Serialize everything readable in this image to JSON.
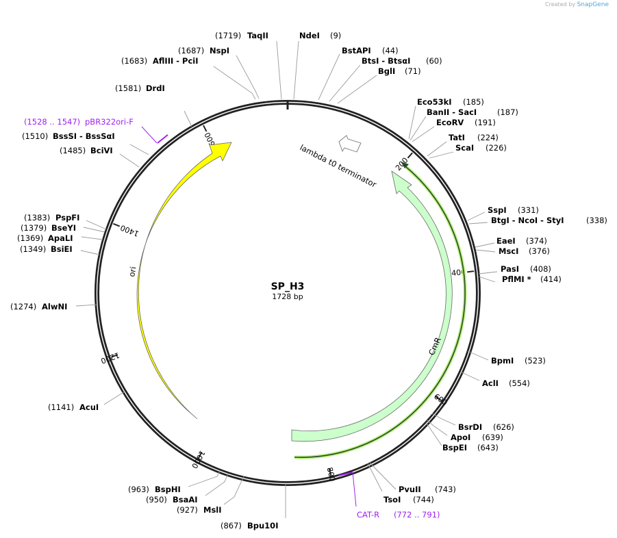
{
  "credit": {
    "prefix": "Created by",
    "brand": "SnapGene"
  },
  "plasmid": {
    "name": "SP_H3",
    "length_label": "1728 bp",
    "length": 1728
  },
  "ticks": [
    {
      "pos": 200,
      "label": "200"
    },
    {
      "pos": 400,
      "label": "400"
    },
    {
      "pos": 600,
      "label": "600"
    },
    {
      "pos": 800,
      "label": "800"
    },
    {
      "pos": 1000,
      "label": "1000"
    },
    {
      "pos": 1200,
      "label": "1200"
    },
    {
      "pos": 1400,
      "label": "1400"
    },
    {
      "pos": 1600,
      "label": "1600"
    }
  ],
  "features": [
    {
      "name": "ori",
      "color": "#ffff00",
      "start": 1000,
      "end": 1590,
      "direction": "forward"
    },
    {
      "name": "CmR",
      "color": "#ccffcc",
      "start": 240,
      "end": 820,
      "direction": "reverse"
    },
    {
      "name": "lambda t0 terminator",
      "color": "#ffffff",
      "start": 105,
      "end": 150,
      "direction": "reverse"
    }
  ],
  "primers": [
    {
      "name": "pBR322ori-F",
      "range": "(1528 .. 1547)"
    },
    {
      "name": "CAT-R",
      "range": "(772 .. 791)"
    }
  ],
  "enzymes": [
    {
      "name": "NdeI",
      "pos": "(9)"
    },
    {
      "name": "BstAPI",
      "pos": "(44)"
    },
    {
      "name": "BtsI  - BtsαI",
      "pos": "(60)"
    },
    {
      "name": "BglI",
      "pos": "(71)"
    },
    {
      "name": "Eco53kI",
      "pos": "(185)"
    },
    {
      "name": "BanII  - SacI",
      "pos": "(187)"
    },
    {
      "name": "EcoRV",
      "pos": "(191)"
    },
    {
      "name": "TatI",
      "pos": "(224)"
    },
    {
      "name": "ScaI",
      "pos": "(226)"
    },
    {
      "name": "SspI",
      "pos": "(331)"
    },
    {
      "name": "BtgI  - NcoI  - StyI",
      "pos": "(338)"
    },
    {
      "name": "EaeI",
      "pos": "(374)"
    },
    {
      "name": "MscI",
      "pos": "(376)"
    },
    {
      "name": "PasI",
      "pos": "(408)"
    },
    {
      "name": "PflMI *",
      "pos": "(414)"
    },
    {
      "name": "BpmI",
      "pos": "(523)"
    },
    {
      "name": "AclI",
      "pos": "(554)"
    },
    {
      "name": "BsrDI",
      "pos": "(626)"
    },
    {
      "name": "ApoI",
      "pos": "(639)"
    },
    {
      "name": "BspEI",
      "pos": "(643)"
    },
    {
      "name": "PvuII",
      "pos": "(743)"
    },
    {
      "name": "TsoI",
      "pos": "(744)"
    },
    {
      "name": "Bpu10I",
      "pos": "(867)"
    },
    {
      "name": "MslI",
      "pos": "(927)"
    },
    {
      "name": "BsaAI",
      "pos": "(950)"
    },
    {
      "name": "BspHI",
      "pos": "(963)"
    },
    {
      "name": "AcuI",
      "pos": "(1141)"
    },
    {
      "name": "AlwNI",
      "pos": "(1274)"
    },
    {
      "name": "BsiEI",
      "pos": "(1349)"
    },
    {
      "name": "ApaLI",
      "pos": "(1369)"
    },
    {
      "name": "BseYI",
      "pos": "(1379)"
    },
    {
      "name": "PspFI",
      "pos": "(1383)"
    },
    {
      "name": "BciVI",
      "pos": "(1485)"
    },
    {
      "name": "BssSI  - BssSαI",
      "pos": "(1510)"
    },
    {
      "name": "DrdI",
      "pos": "(1581)"
    },
    {
      "name": "AflIII  - PciI",
      "pos": "(1683)"
    },
    {
      "name": "NspI",
      "pos": "(1687)"
    },
    {
      "name": "TaqII",
      "pos": "(1719)"
    }
  ]
}
